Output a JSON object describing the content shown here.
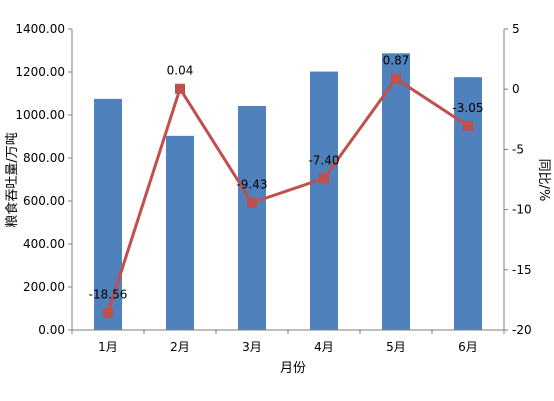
{
  "chart_data": {
    "type": "bar",
    "categories": [
      "1月",
      "2月",
      "3月",
      "4月",
      "5月",
      "6月"
    ],
    "xlabel": "月份",
    "ylabel": "粮食吞吐量/万吨",
    "y2label": "同比/%",
    "ylim": [
      0,
      1400
    ],
    "y2lim": [
      -20,
      5
    ],
    "yticks": [
      "0.00",
      "200.00",
      "400.00",
      "600.00",
      "800.00",
      "1000.00",
      "1200.00",
      "1400.00"
    ],
    "y2ticks": [
      "5",
      "0",
      "-5",
      "-10",
      "-15",
      "-20"
    ],
    "series": [
      {
        "type": "bar",
        "axis": "left",
        "color": "#4f81bd",
        "values": [
          1075,
          903,
          1042,
          1202,
          1287,
          1176
        ]
      },
      {
        "type": "line",
        "axis": "right",
        "color": "#c0504d",
        "values": [
          -18.56,
          0.04,
          -9.43,
          -7.4,
          0.87,
          -3.05
        ],
        "labels": [
          "-18.56",
          "0.04",
          "-9.43",
          "-7.40",
          "0.87",
          "-3.05"
        ]
      }
    ],
    "grid": false
  }
}
